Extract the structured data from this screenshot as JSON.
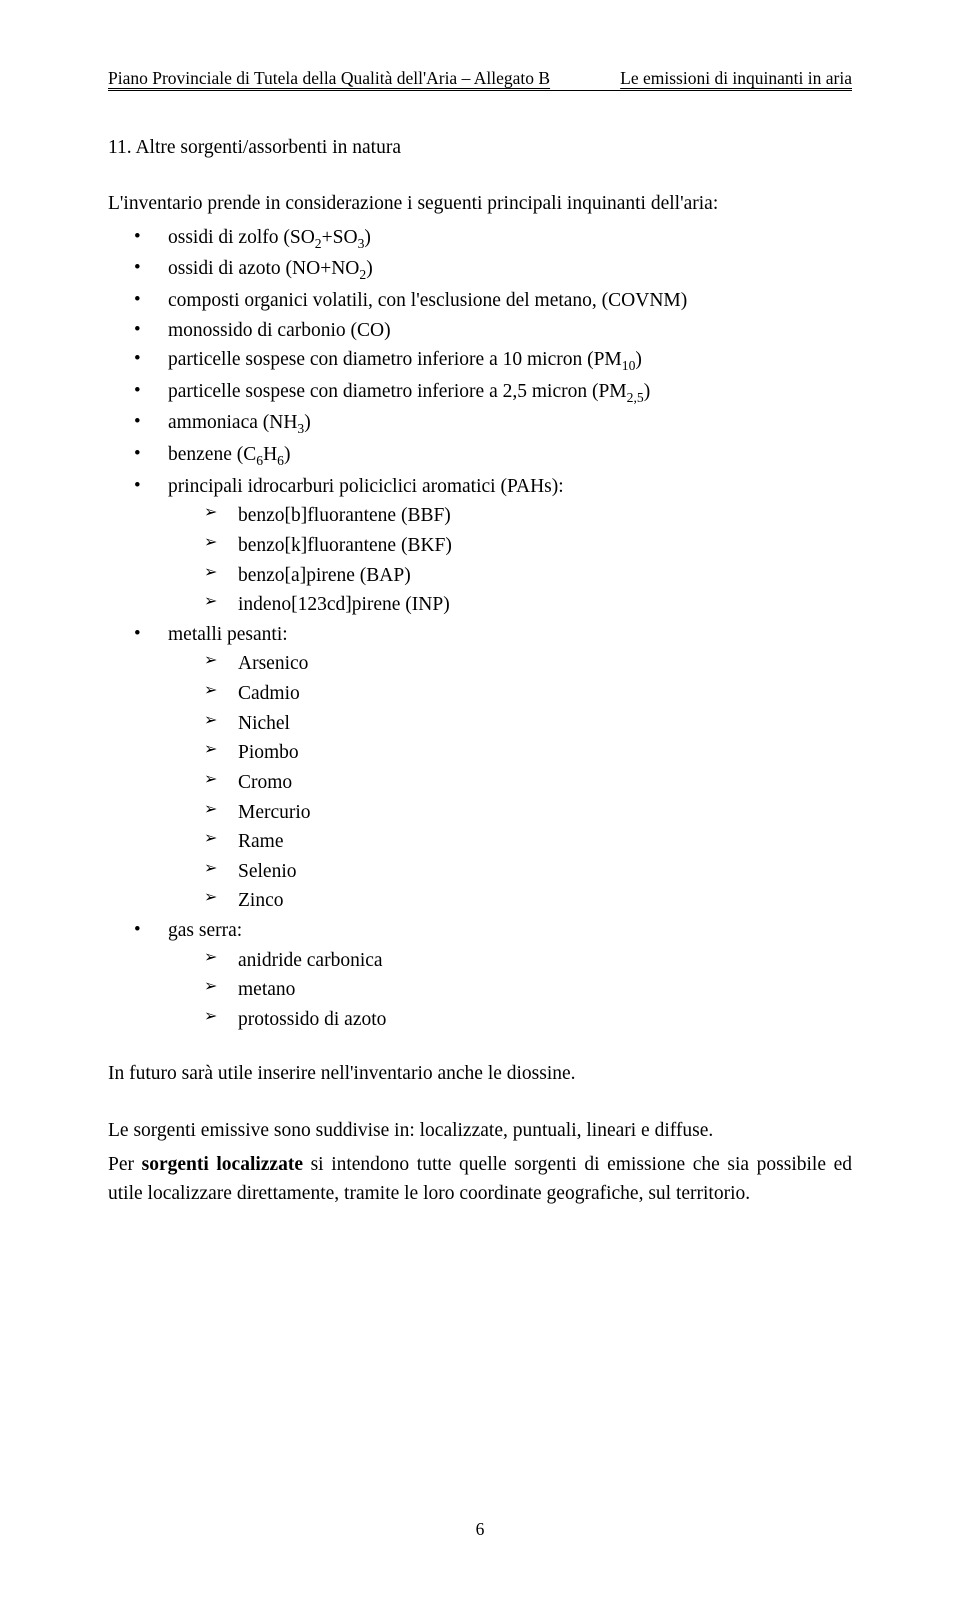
{
  "header": {
    "left": "Piano Provinciale di Tutela della Qualità dell'Aria – Allegato B",
    "right": "Le emissioni di inquinanti in aria"
  },
  "title": "11. Altre sorgenti/assorbenti in natura",
  "intro": "L'inventario prende in considerazione i seguenti principali inquinanti dell'aria:",
  "items": {
    "i0": "ossidi di zolfo (SO",
    "i0b": "+SO",
    "i0c": ")",
    "i1": "ossidi di azoto (NO+NO",
    "i1b": ")",
    "i2": "composti organici volatili, con l'esclusione del metano, (COVNM)",
    "i3": "monossido di carbonio (CO)",
    "i4a": "particelle sospese con diametro inferiore a 10 micron (PM",
    "i4b": ")",
    "i5a": "particelle sospese con diametro inferiore a 2,5 micron (PM",
    "i5b": ")",
    "i6a": "ammoniaca (NH",
    "i6b": ")",
    "i7a": "benzene (C",
    "i7b": "H",
    "i7c": ")",
    "i8": "principali idrocarburi policiclici aromatici (PAHs):",
    "pah": {
      "a": "benzo[b]fluorantene (BBF)",
      "b": "benzo[k]fluorantene (BKF)",
      "c": "benzo[a]pirene (BAP)",
      "d": "indeno[123cd]pirene (INP)"
    },
    "i9": "metalli pesanti:",
    "met": {
      "a": "Arsenico",
      "b": "Cadmio",
      "c": "Nichel",
      "d": "Piombo",
      "e": "Cromo",
      "f": "Mercurio",
      "g": "Rame",
      "h": "Selenio",
      "i": "Zinco"
    },
    "i10": "gas serra:",
    "gas": {
      "a": "anidride carbonica",
      "b": "metano",
      "c": "protossido di azoto"
    }
  },
  "para2": "In futuro sarà utile inserire nell'inventario anche le diossine.",
  "para3": "Le sorgenti emissive sono suddivise in: localizzate, puntuali, lineari e diffuse.",
  "para4a": "Per ",
  "para4bold": "sorgenti localizzate",
  "para4b": " si intendono tutte quelle sorgenti di emissione che sia possibile ed utile localizzare direttamente, tramite le loro coordinate geografiche, sul territorio.",
  "pagenum": "6",
  "sub": {
    "s2": "2",
    "s3": "3",
    "s10": "10",
    "s25": "2,5",
    "s6": "6"
  }
}
